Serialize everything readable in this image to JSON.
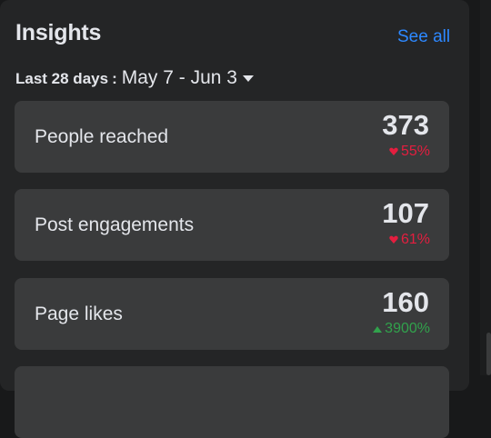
{
  "insights": {
    "title": "Insights",
    "see_all": "See all",
    "range_label": "Last 28 days",
    "range_sep": ":",
    "range_dates": "May 7 - Jun 3"
  },
  "colors": {
    "panel_bg": "#242526",
    "card_bg": "#3a3b3c",
    "link": "#2d88ff",
    "down": "#e41e3f",
    "up": "#31a24c"
  },
  "cards": [
    {
      "label": "People reached",
      "value": "373",
      "delta": "55%",
      "direction": "down",
      "delta_icon": "down-arrow-icon"
    },
    {
      "label": "Post engagements",
      "value": "107",
      "delta": "61%",
      "direction": "down",
      "delta_icon": "down-arrow-icon"
    },
    {
      "label": "Page likes",
      "value": "160",
      "delta": "3900%",
      "direction": "up",
      "delta_icon": "up-arrow-icon"
    }
  ]
}
